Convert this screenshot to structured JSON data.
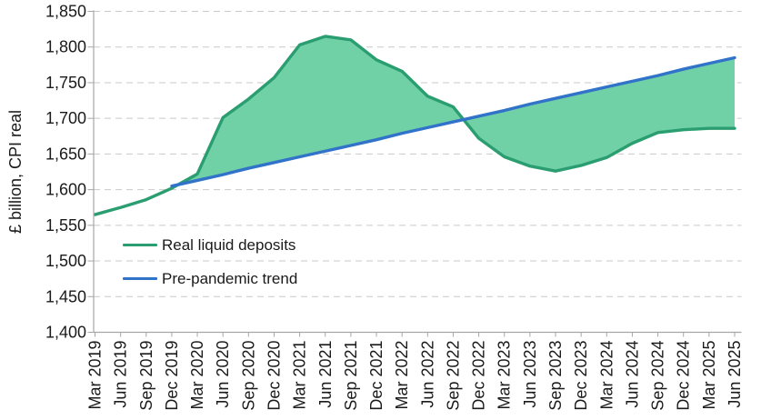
{
  "chart_data": {
    "type": "area",
    "title": "",
    "xlabel": "",
    "ylabel": "£ billion, CPI real",
    "ylim": [
      1400,
      1850
    ],
    "ytick_step": 50,
    "grid": "horizontal-dashed",
    "legend_position": "inside-top-left",
    "categories": [
      "Mar 2019",
      "Jun 2019",
      "Sep 2019",
      "Dec 2019",
      "Mar 2020",
      "Jun 2020",
      "Sep 2020",
      "Dec 2020",
      "Mar 2021",
      "Jun 2021",
      "Sep 2021",
      "Dec 2021",
      "Mar 2022",
      "Jun 2022",
      "Sep 2022",
      "Dec 2022",
      "Mar 2023",
      "Jun 2023",
      "Sep 2023",
      "Dec 2023",
      "Mar 2024",
      "Jun 2024",
      "Sep 2024",
      "Dec 2024",
      "Mar 2025",
      "Jun 2025"
    ],
    "series": [
      {
        "name": "Real liquid deposits",
        "color": "#2b9e71",
        "values": [
          1565,
          1575,
          1586,
          1602,
          1622,
          1701,
          1727,
          1757,
          1803,
          1815,
          1810,
          1782,
          1766,
          1731,
          1716,
          1672,
          1646,
          1633,
          1626,
          1634,
          1645,
          1665,
          1680,
          1684,
          1686,
          1686
        ]
      },
      {
        "name": "Pre-pandemic trend",
        "color": "#3273ca",
        "values": [
          null,
          null,
          null,
          1605,
          1613,
          1621,
          1630,
          1638,
          1646,
          1654,
          1662,
          1670,
          1679,
          1687,
          1695,
          1703,
          1711,
          1720,
          1728,
          1736,
          1744,
          1752,
          1760,
          1769,
          1777,
          1785
        ]
      }
    ],
    "fill_between_series": true,
    "fill_color": "#70d0a6"
  },
  "styles": {
    "gridline_color": "#c9c9c9",
    "axis_color": "#a6a6a6",
    "tick_label_color": "#1a1a1a"
  }
}
